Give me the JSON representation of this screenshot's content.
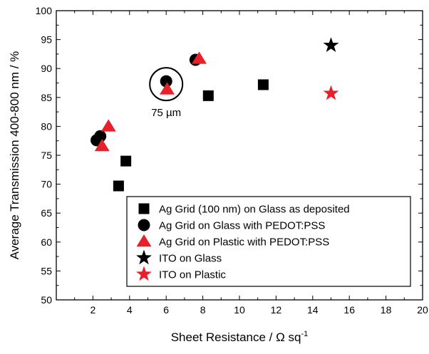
{
  "chart_data": {
    "type": "scatter",
    "title": "",
    "xlabel": "Sheet Resistance / Ω sq",
    "xlabel_superscript": "-1",
    "ylabel": "Average Transmission 400-800 nm / %",
    "xlim": [
      0,
      20
    ],
    "ylim": [
      50,
      100
    ],
    "x_ticks": [
      2,
      4,
      6,
      8,
      10,
      12,
      14,
      16,
      18,
      20
    ],
    "y_ticks": [
      50,
      55,
      60,
      65,
      70,
      75,
      80,
      85,
      90,
      95,
      100
    ],
    "grid": false,
    "legend_position": "bottom-right",
    "series": [
      {
        "name": "Ag Grid (100 nm) on Glass as deposited",
        "marker": "square",
        "color": "#000000",
        "points": [
          [
            3.4,
            69.7
          ],
          [
            3.8,
            74.0
          ],
          [
            8.3,
            85.3
          ],
          [
            11.3,
            87.2
          ]
        ]
      },
      {
        "name": "Ag Grid on Glass with PEDOT:PSS",
        "marker": "circle",
        "color": "#000000",
        "points": [
          [
            2.2,
            77.6
          ],
          [
            2.4,
            78.3
          ],
          [
            6.0,
            87.8
          ],
          [
            7.6,
            91.5
          ]
        ]
      },
      {
        "name": "Ag Grid on Plastic with PEDOT:PSS",
        "marker": "triangle",
        "color": "#e8202a",
        "points": [
          [
            2.5,
            76.6
          ],
          [
            2.85,
            80.0
          ],
          [
            6.05,
            86.4
          ],
          [
            7.8,
            91.7
          ]
        ]
      },
      {
        "name": "ITO on Glass",
        "marker": "star",
        "color": "#000000",
        "points": [
          [
            15.0,
            94.0
          ]
        ]
      },
      {
        "name": "ITO on Plastic",
        "marker": "star",
        "color": "#e8202a",
        "points": [
          [
            15.0,
            85.7
          ]
        ]
      }
    ],
    "annotations": [
      {
        "text": "75 µm",
        "anchor": [
          6.0,
          87.3
        ],
        "shape": "circle"
      }
    ]
  }
}
